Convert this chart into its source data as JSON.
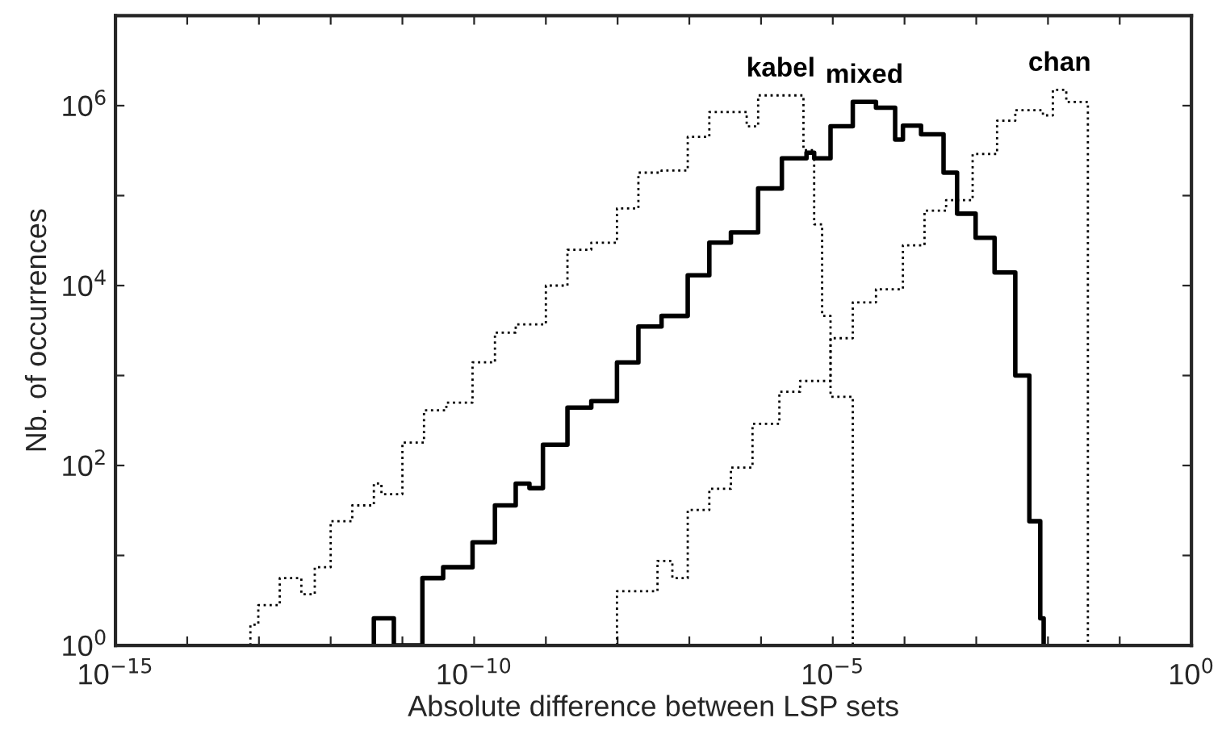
{
  "chart_data": {
    "type": "step",
    "xlabel": "Absolute difference between LSP sets",
    "ylabel": "Nb. of occurrences",
    "log": "xy",
    "grid": false,
    "legend": false,
    "xlim": [
      1e-15,
      1
    ],
    "ylim": [
      1,
      10000000.0
    ],
    "xticks": [
      {
        "value": 1e-15,
        "label": "10$^{−15}$"
      },
      {
        "value": 1e-14,
        "label": null
      },
      {
        "value": 1e-13,
        "label": null
      },
      {
        "value": 1e-12,
        "label": null
      },
      {
        "value": 1e-11,
        "label": null
      },
      {
        "value": 1e-10,
        "label": "10$^{−10}$"
      },
      {
        "value": 1e-09,
        "label": null
      },
      {
        "value": 1e-08,
        "label": null
      },
      {
        "value": 1e-07,
        "label": null
      },
      {
        "value": 1e-06,
        "label": null
      },
      {
        "value": 1e-05,
        "label": "10$^{−5}$"
      },
      {
        "value": 0.0001,
        "label": null
      },
      {
        "value": 0.001,
        "label": null
      },
      {
        "value": 0.01,
        "label": null
      },
      {
        "value": 0.1,
        "label": null
      },
      {
        "value": 1,
        "label": "10$^{0}$"
      }
    ],
    "yticks": [
      {
        "value": 1,
        "label": "10$^{0}$"
      },
      {
        "value": 10,
        "label": null
      },
      {
        "value": 100,
        "label": "10$^{2}$"
      },
      {
        "value": 1000,
        "label": null
      },
      {
        "value": 10000,
        "label": "10$^{4}$"
      },
      {
        "value": 100000,
        "label": null
      },
      {
        "value": 1000000,
        "label": "10$^{6}$"
      },
      {
        "value": 10000000,
        "label": null
      }
    ],
    "series": [
      {
        "name": "kabel",
        "color": "#000000",
        "line_style": "dotted",
        "x": [
          7.6e-14,
          7.6e-14,
          9.8e-14,
          1.95e-13,
          3.9e-13,
          6e-13,
          1e-12,
          2e-12,
          4e-12,
          5.1e-12,
          1e-11,
          2e-11,
          4.1e-11,
          9.5e-11,
          1.95e-10,
          3.8e-10,
          1e-09,
          2e-09,
          4.3e-09,
          9.8e-09,
          1.95e-08,
          4.1e-08,
          9.5e-08,
          1.9e-07,
          6.3e-07,
          9.1e-07,
          3.9e-06,
          5.5e-06,
          7.1e-06,
          9.3e-06,
          1.9e-05
        ],
        "values": [
          1,
          1.7,
          2.8,
          5.6,
          3.7,
          7.4,
          24,
          36,
          63,
          48,
          180,
          410,
          500,
          1400,
          3000,
          3700,
          10000,
          25000,
          30000,
          72000,
          180000,
          190000,
          450000,
          850000,
          590000,
          1300000,
          320000,
          48000,
          4600,
          580,
          1
        ]
      },
      {
        "name": "mixed",
        "color": "#000000",
        "line_style": "solid",
        "x": [
          4e-12,
          4e-12,
          7.6e-12,
          1.9e-11,
          3.7e-11,
          9.5e-11,
          1.95e-10,
          3.8e-10,
          5.9e-10,
          9.1e-10,
          2e-09,
          4.3e-09,
          9.8e-09,
          1.95e-08,
          4.1e-08,
          9.5e-08,
          1.9e-07,
          3.8e-07,
          9.1e-07,
          1.95e-06,
          4.3e-06,
          5.5e-06,
          9.3e-06,
          1.9e-05,
          4e-05,
          7.4e-05,
          9.5e-05,
          0.00017,
          0.00035,
          0.00054,
          0.00098,
          0.0018,
          0.0035,
          0.0055,
          0.0078,
          0.0087
        ],
        "values": [
          1,
          2,
          1,
          5.6,
          7.4,
          14,
          36,
          63,
          56,
          170,
          440,
          520,
          1400,
          3500,
          4600,
          13000,
          30000,
          39000,
          120000,
          260000,
          300000,
          260000,
          590000,
          1100000,
          950000,
          420000,
          600000,
          480000,
          180000,
          63000,
          34000,
          14000,
          1000,
          24,
          2,
          1
        ]
      },
      {
        "name": "chan",
        "color": "#000000",
        "line_style": "dotted",
        "x": [
          9.8e-09,
          9.8e-09,
          3.6e-08,
          5.8e-08,
          9.5e-08,
          1.9e-07,
          3.8e-07,
          7.6e-07,
          1.8e-06,
          3.5e-06,
          9.3e-06,
          1.9e-05,
          4e-05,
          9.5e-05,
          0.00019,
          0.00038,
          0.00089,
          0.00195,
          0.0035,
          0.0085,
          0.0117,
          0.018,
          0.036
        ],
        "values": [
          1,
          4.0,
          8.7,
          5.6,
          32,
          55,
          95,
          290,
          660,
          870,
          2600,
          6500,
          9100,
          28000,
          68000,
          89000,
          290000,
          680000,
          890000,
          780000,
          1500000,
          1100000,
          1
        ]
      }
    ]
  }
}
